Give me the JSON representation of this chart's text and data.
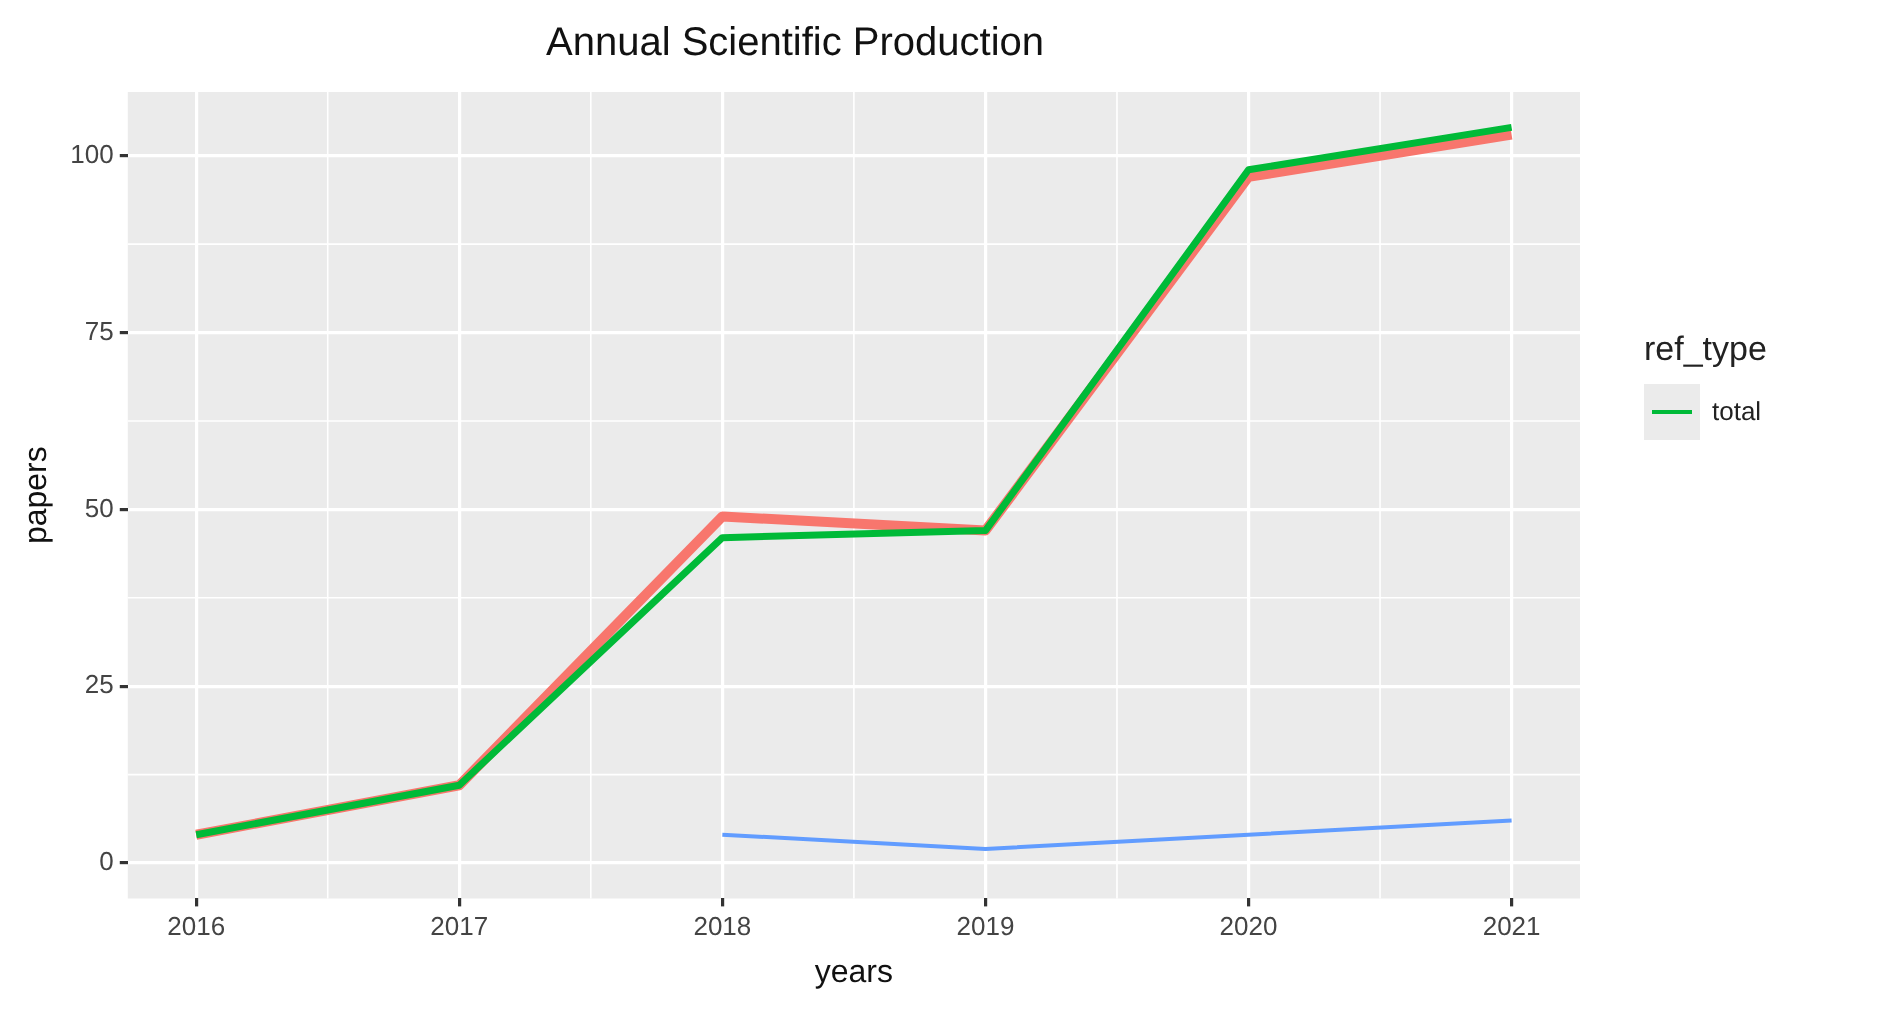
{
  "chart_data": {
    "type": "line",
    "title": "Annual Scientific Production",
    "xlabel": "years",
    "ylabel": "papers",
    "legend_title": "ref_type",
    "legend": "right",
    "x": [
      2016,
      2017,
      2018,
      2019,
      2020,
      2021
    ],
    "series": [
      {
        "color": "#f8766d",
        "values": [
          4,
          11,
          49,
          47,
          97,
          103
        ]
      },
      {
        "name": "total",
        "color": "#00ba38",
        "values": [
          4,
          11,
          46,
          47,
          98,
          104
        ]
      },
      {
        "color": "#619cff",
        "values": [
          null,
          null,
          4,
          2,
          4,
          6
        ]
      }
    ],
    "xlim": [
      2015.74,
      2021.26
    ],
    "xticks": [
      2016,
      2017,
      2018,
      2019,
      2020,
      2021
    ],
    "ylim": [
      -5,
      109
    ],
    "yticks": [
      0,
      25,
      50,
      75,
      100
    ],
    "grid": true,
    "line_style": "solid",
    "marker": "none"
  }
}
